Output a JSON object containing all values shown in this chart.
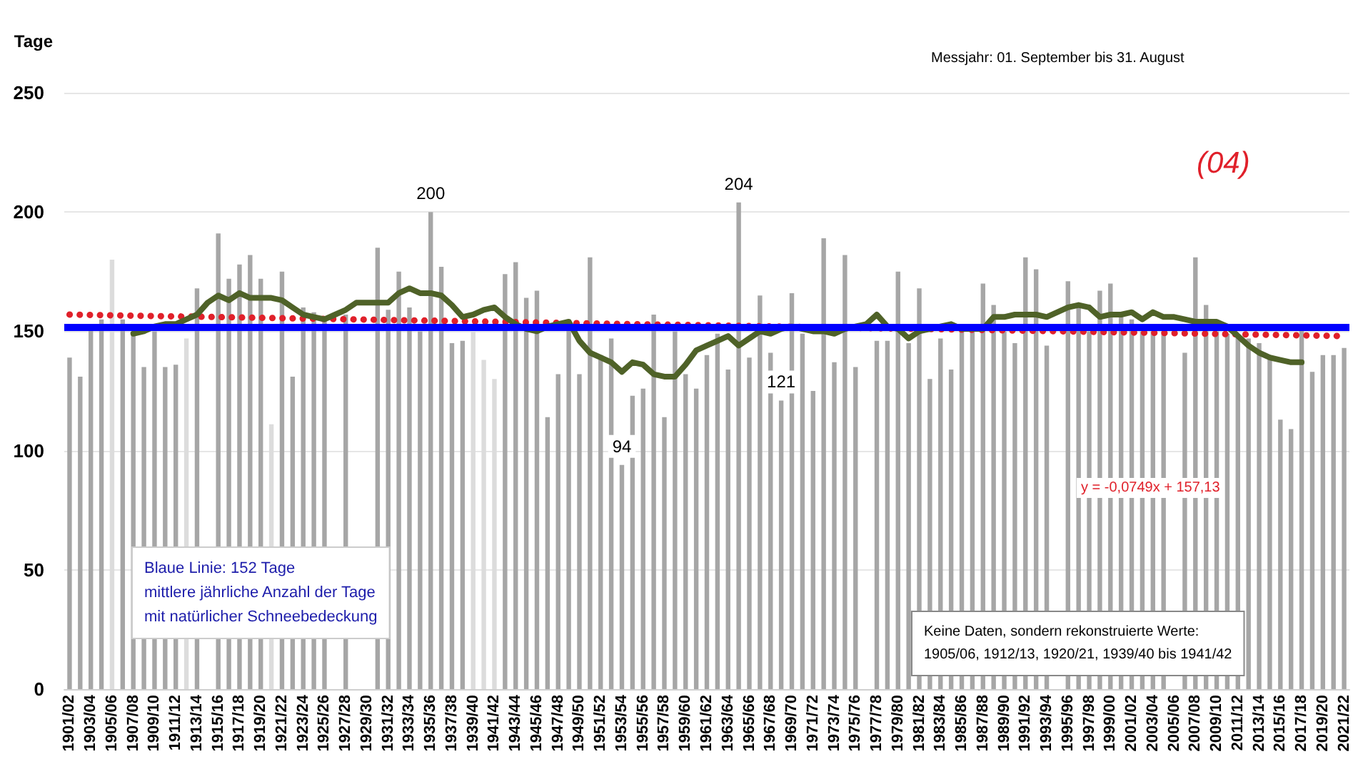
{
  "chart_data": {
    "type": "bar",
    "ylabel": "Tage",
    "ylim": [
      0,
      250
    ],
    "yticks": [
      0,
      50,
      100,
      150,
      200,
      250
    ],
    "grid": "y",
    "categories": [
      "1901/02",
      null,
      "1903/04",
      null,
      "1905/06",
      null,
      "1907/08",
      null,
      "1909/10",
      null,
      "1911/12",
      null,
      "1913/14",
      null,
      "1915/16",
      null,
      "1917/18",
      null,
      "1919/20",
      null,
      "1921/22",
      null,
      "1923/24",
      null,
      "1925/26",
      null,
      "1927/28",
      null,
      "1929/30",
      null,
      "1931/32",
      null,
      "1933/34",
      null,
      "1935/36",
      null,
      "1937/38",
      null,
      "1939/40",
      null,
      "1941/42",
      null,
      "1943/44",
      null,
      "1945/46",
      null,
      "1947/48",
      null,
      "1949/50",
      null,
      "1951/52",
      null,
      "1953/54",
      null,
      "1955/56",
      null,
      "1957/58",
      null,
      "1959/60",
      null,
      "1961/62",
      null,
      "1963/64",
      null,
      "1965/66",
      null,
      "1967/68",
      null,
      "1969/70",
      null,
      "1971/72",
      null,
      "1973/74",
      null,
      "1975/76",
      null,
      "1977/78",
      null,
      "1979/80",
      null,
      "1981/82",
      null,
      "1983/84",
      null,
      "1985/86",
      null,
      "1987/88",
      null,
      "1989/90",
      null,
      "1991/92",
      null,
      "1993/94",
      null,
      "1995/96",
      null,
      "1997/98",
      null,
      "1999/00",
      null,
      "2001/02",
      null,
      "2003/04",
      null,
      "2005/06",
      null,
      "2007/08",
      null,
      "2009/10",
      null,
      "2011/12",
      null,
      "2013/14",
      null,
      "2015/16",
      null,
      "2017/18",
      null,
      "2019/20",
      null,
      "2021/22"
    ],
    "series": [
      {
        "colors": [
          "#a6a6a6",
          "#a6a6a6",
          "#a6a6a6",
          "#a6a6a6",
          "#dcdcdc",
          "#a6a6a6",
          "#a6a6a6",
          "#a6a6a6",
          "#a6a6a6",
          "#a6a6a6",
          "#a6a6a6",
          "#dcdcdc",
          "#a6a6a6",
          "#a6a6a6",
          "#a6a6a6",
          "#a6a6a6",
          "#a6a6a6",
          "#a6a6a6",
          "#a6a6a6",
          "#dcdcdc",
          "#a6a6a6",
          "#a6a6a6",
          "#a6a6a6",
          "#a6a6a6",
          "#a6a6a6",
          "#a6a6a6",
          "#a6a6a6",
          "#a6a6a6",
          "#a6a6a6",
          "#a6a6a6",
          "#a6a6a6",
          "#a6a6a6",
          "#a6a6a6",
          "#a6a6a6",
          "#a6a6a6",
          "#a6a6a6",
          "#a6a6a6",
          "#a6a6a6",
          "#dcdcdc",
          "#dcdcdc",
          "#dcdcdc",
          "#a6a6a6",
          "#a6a6a6",
          "#a6a6a6",
          "#a6a6a6",
          "#a6a6a6",
          "#a6a6a6",
          "#a6a6a6",
          "#a6a6a6",
          "#a6a6a6",
          "#a6a6a6",
          "#a6a6a6",
          "#a6a6a6",
          "#a6a6a6",
          "#a6a6a6",
          "#a6a6a6",
          "#a6a6a6",
          "#a6a6a6",
          "#a6a6a6",
          "#a6a6a6",
          "#a6a6a6",
          "#a6a6a6",
          "#a6a6a6",
          "#a6a6a6",
          "#a6a6a6",
          "#a6a6a6",
          "#a6a6a6",
          "#a6a6a6",
          "#a6a6a6",
          "#a6a6a6",
          "#a6a6a6",
          "#a6a6a6",
          "#a6a6a6",
          "#a6a6a6",
          "#a6a6a6",
          "#a6a6a6",
          "#a6a6a6",
          "#a6a6a6",
          "#a6a6a6",
          "#a6a6a6",
          "#a6a6a6",
          "#a6a6a6",
          "#a6a6a6",
          "#a6a6a6",
          "#a6a6a6",
          "#a6a6a6",
          "#a6a6a6",
          "#a6a6a6",
          "#a6a6a6",
          "#a6a6a6",
          "#a6a6a6",
          "#a6a6a6",
          "#a6a6a6",
          "#a6a6a6",
          "#a6a6a6",
          "#a6a6a6",
          "#a6a6a6",
          "#a6a6a6",
          "#a6a6a6",
          "#a6a6a6",
          "#a6a6a6",
          "#a6a6a6",
          "#a6a6a6",
          "#a6a6a6",
          "#a6a6a6",
          "#a6a6a6",
          "#a6a6a6",
          "#a6a6a6",
          "#a6a6a6",
          "#a6a6a6",
          "#a6a6a6",
          "#a6a6a6",
          "#a6a6a6",
          "#a6a6a6",
          "#a6a6a6",
          "#a6a6a6",
          "#a6a6a6",
          "#a6a6a6",
          "#a6a6a6",
          "#a6a6a6",
          "#a6a6a6"
        ],
        "values": [
          139,
          131,
          151,
          155,
          180,
          155,
          150,
          135,
          150,
          135,
          136,
          147,
          168,
          null,
          191,
          172,
          178,
          182,
          172,
          111,
          175,
          131,
          160,
          158,
          155,
          null,
          157,
          null,
          null,
          185,
          159,
          175,
          160,
          150,
          200,
          177,
          145,
          146,
          150,
          138,
          130,
          174,
          179,
          164,
          167,
          114,
          132,
          155,
          132,
          181,
          140,
          147,
          94,
          123,
          126,
          157,
          114,
          150,
          132,
          126,
          140,
          149,
          134,
          204,
          139,
          165,
          141,
          121,
          166,
          149,
          125,
          189,
          137,
          182,
          135,
          null,
          146,
          146,
          175,
          145,
          168,
          130,
          147,
          134,
          150,
          150,
          170,
          161,
          150,
          145,
          181,
          176,
          144,
          null,
          171,
          160,
          150,
          167,
          170,
          158,
          155,
          150,
          150,
          150,
          null,
          141,
          181,
          161,
          150,
          149,
          148,
          147,
          145,
          139,
          113,
          109,
          151,
          133,
          140,
          140,
          143
        ],
        "value_labels": [
          null,
          null,
          null,
          null,
          null,
          null,
          null,
          null,
          null,
          null,
          null,
          null,
          null,
          null,
          null,
          null,
          null,
          null,
          null,
          null,
          null,
          null,
          null,
          null,
          null,
          null,
          null,
          null,
          null,
          null,
          null,
          null,
          null,
          null,
          "200",
          null,
          null,
          null,
          null,
          null,
          null,
          null,
          null,
          null,
          null,
          null,
          null,
          null,
          null,
          null,
          null,
          null,
          "94",
          null,
          null,
          null,
          null,
          null,
          null,
          null,
          null,
          null,
          null,
          "204",
          null,
          null,
          null,
          "121",
          null,
          null,
          null,
          null,
          null,
          null,
          null,
          null,
          null,
          null,
          null,
          null,
          null,
          null,
          null,
          null,
          null,
          null,
          null,
          null,
          null,
          null,
          null,
          null,
          null,
          null,
          null,
          null,
          null,
          null,
          null,
          null,
          null,
          null,
          null,
          null,
          null,
          null,
          null,
          null,
          null,
          null,
          null,
          null,
          null,
          null,
          null,
          null,
          null,
          null,
          null,
          null,
          null
        ]
      },
      {
        "type": "line",
        "color": "#4f6228",
        "values": [
          null,
          null,
          null,
          null,
          null,
          null,
          149,
          150,
          152,
          153,
          153,
          155,
          157,
          162,
          165,
          163,
          166,
          164,
          164,
          164,
          163,
          160,
          157,
          156,
          155,
          157,
          159,
          162,
          162,
          162,
          162,
          166,
          168,
          166,
          166,
          165,
          161,
          156,
          157,
          159,
          160,
          156,
          153,
          151,
          150,
          152,
          153,
          154,
          146,
          141,
          139,
          137,
          133,
          137,
          136,
          132,
          131,
          131,
          136,
          142,
          144,
          146,
          148,
          144,
          147,
          150,
          149,
          151,
          152,
          151,
          150,
          150,
          149,
          151,
          152,
          153,
          157,
          152,
          151,
          147,
          150,
          151,
          152,
          153,
          151,
          151,
          151,
          156,
          156,
          157,
          157,
          157,
          156,
          158,
          160,
          161,
          160,
          156,
          157,
          157,
          158,
          155,
          158,
          156,
          156,
          155,
          154,
          154,
          154,
          152,
          148,
          144,
          141,
          139,
          138,
          137,
          137,
          null,
          null,
          null,
          null
        ]
      },
      {
        "type": "line",
        "color": "#e0202a",
        "line_style": "dotted",
        "values": [
          157,
          null,
          null,
          null,
          null,
          null,
          null,
          null,
          null,
          null,
          null,
          null,
          null,
          null,
          null,
          null,
          null,
          null,
          null,
          null,
          null,
          null,
          null,
          null,
          null,
          null,
          null,
          null,
          null,
          null,
          null,
          null,
          null,
          null,
          null,
          null,
          null,
          null,
          null,
          null,
          null,
          null,
          null,
          null,
          null,
          null,
          null,
          null,
          null,
          null,
          null,
          null,
          null,
          null,
          null,
          null,
          null,
          null,
          null,
          null,
          null,
          null,
          null,
          null,
          null,
          null,
          null,
          null,
          null,
          null,
          null,
          null,
          null,
          null,
          null,
          null,
          null,
          null,
          null,
          null,
          null,
          null,
          null,
          null,
          null,
          null,
          null,
          null,
          null,
          null,
          null,
          null,
          null,
          null,
          null,
          null,
          null,
          null,
          null,
          null,
          null,
          null,
          null,
          null,
          null,
          null,
          null,
          null,
          null,
          null,
          null,
          null,
          null,
          null,
          null,
          null,
          null,
          null,
          null,
          null,
          148
        ]
      }
    ],
    "ref_lines": [
      {
        "axis": "y",
        "value": 152,
        "color": "#0000ff"
      }
    ],
    "annotations": [
      "Messjahr: 01. September bis 31. August",
      "(04)",
      "y = -0,0749x + 157,13",
      "Blaue Linie: 152 Tage\nmittlere jährliche Anzahl der Tage\nmit natürlicher Schneebedeckung",
      "Keine Daten, sondern rekonstruierte Werte:\n1905/06, 1912/13, 1920/21, 1939/40 bis 1941/42"
    ]
  }
}
